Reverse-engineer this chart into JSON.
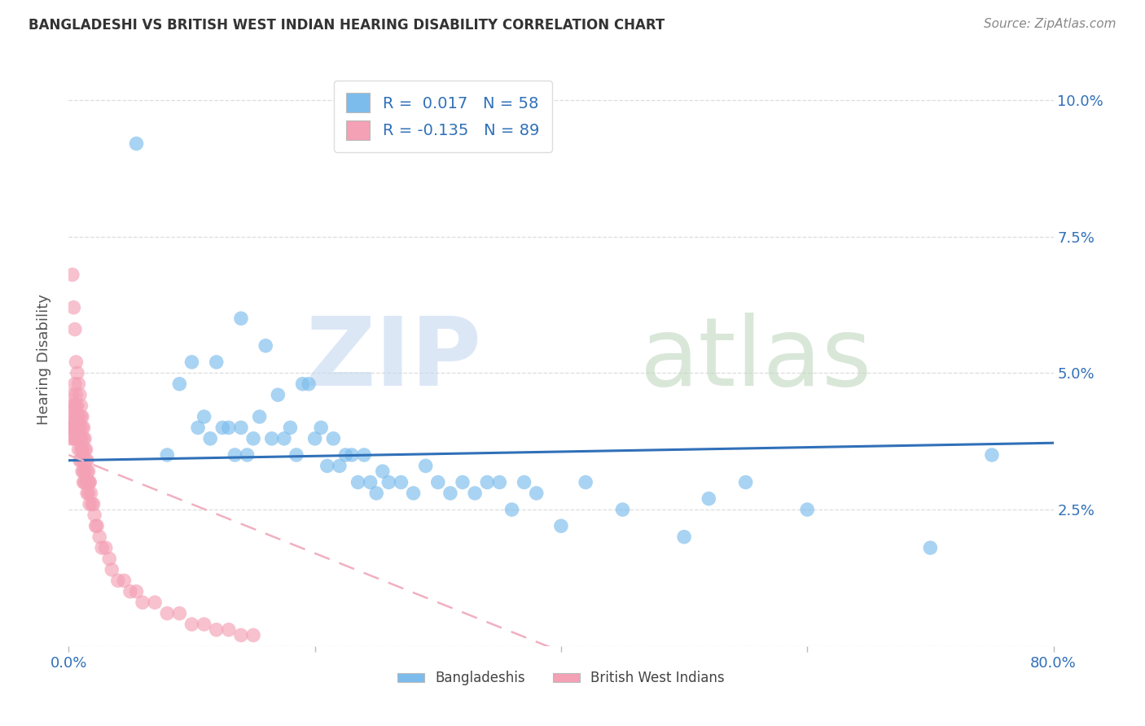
{
  "title": "BANGLADESHI VS BRITISH WEST INDIAN HEARING DISABILITY CORRELATION CHART",
  "source": "Source: ZipAtlas.com",
  "ylabel": "Hearing Disability",
  "xlim": [
    0.0,
    0.8
  ],
  "ylim": [
    0.0,
    0.105
  ],
  "blue_R": 0.017,
  "blue_N": 58,
  "pink_R": -0.135,
  "pink_N": 89,
  "blue_color": "#7BBCEC",
  "pink_color": "#F4A0B5",
  "blue_line_color": "#3070B8",
  "pink_line_color": "#F0B0C0",
  "background_color": "#FFFFFF",
  "legend_text_color": "#3070B8",
  "tick_color": "#3070B8",
  "grid_color": "#DDDDDD",
  "blue_scatter_x": [
    0.055,
    0.08,
    0.09,
    0.1,
    0.105,
    0.11,
    0.115,
    0.12,
    0.125,
    0.13,
    0.135,
    0.14,
    0.14,
    0.145,
    0.15,
    0.155,
    0.16,
    0.165,
    0.17,
    0.175,
    0.18,
    0.185,
    0.19,
    0.195,
    0.2,
    0.205,
    0.21,
    0.215,
    0.22,
    0.225,
    0.23,
    0.235,
    0.24,
    0.245,
    0.25,
    0.255,
    0.26,
    0.27,
    0.28,
    0.29,
    0.3,
    0.31,
    0.32,
    0.33,
    0.34,
    0.35,
    0.36,
    0.37,
    0.38,
    0.4,
    0.42,
    0.45,
    0.5,
    0.52,
    0.55,
    0.6,
    0.7,
    0.75
  ],
  "blue_scatter_y": [
    0.092,
    0.035,
    0.048,
    0.052,
    0.04,
    0.042,
    0.038,
    0.052,
    0.04,
    0.04,
    0.035,
    0.06,
    0.04,
    0.035,
    0.038,
    0.042,
    0.055,
    0.038,
    0.046,
    0.038,
    0.04,
    0.035,
    0.048,
    0.048,
    0.038,
    0.04,
    0.033,
    0.038,
    0.033,
    0.035,
    0.035,
    0.03,
    0.035,
    0.03,
    0.028,
    0.032,
    0.03,
    0.03,
    0.028,
    0.033,
    0.03,
    0.028,
    0.03,
    0.028,
    0.03,
    0.03,
    0.025,
    0.03,
    0.028,
    0.022,
    0.03,
    0.025,
    0.02,
    0.027,
    0.03,
    0.025,
    0.018,
    0.035
  ],
  "pink_scatter_x": [
    0.001,
    0.002,
    0.002,
    0.003,
    0.003,
    0.003,
    0.004,
    0.004,
    0.004,
    0.005,
    0.005,
    0.005,
    0.006,
    0.006,
    0.006,
    0.006,
    0.007,
    0.007,
    0.007,
    0.007,
    0.008,
    0.008,
    0.008,
    0.009,
    0.009,
    0.009,
    0.01,
    0.01,
    0.01,
    0.01,
    0.011,
    0.011,
    0.011,
    0.012,
    0.012,
    0.012,
    0.012,
    0.013,
    0.013,
    0.013,
    0.014,
    0.014,
    0.015,
    0.015,
    0.015,
    0.016,
    0.016,
    0.017,
    0.017,
    0.018,
    0.019,
    0.02,
    0.021,
    0.022,
    0.023,
    0.025,
    0.027,
    0.03,
    0.033,
    0.035,
    0.04,
    0.045,
    0.05,
    0.055,
    0.06,
    0.07,
    0.08,
    0.09,
    0.1,
    0.11,
    0.12,
    0.13,
    0.14,
    0.15,
    0.003,
    0.004,
    0.005,
    0.006,
    0.007,
    0.008,
    0.009,
    0.01,
    0.011,
    0.012,
    0.013,
    0.014,
    0.015,
    0.016,
    0.017
  ],
  "pink_scatter_y": [
    0.04,
    0.038,
    0.042,
    0.044,
    0.04,
    0.046,
    0.038,
    0.042,
    0.04,
    0.048,
    0.044,
    0.04,
    0.046,
    0.042,
    0.038,
    0.044,
    0.042,
    0.038,
    0.044,
    0.04,
    0.042,
    0.038,
    0.036,
    0.04,
    0.038,
    0.034,
    0.042,
    0.038,
    0.036,
    0.034,
    0.04,
    0.036,
    0.032,
    0.038,
    0.034,
    0.032,
    0.03,
    0.036,
    0.032,
    0.03,
    0.034,
    0.03,
    0.032,
    0.03,
    0.028,
    0.03,
    0.028,
    0.03,
    0.026,
    0.028,
    0.026,
    0.026,
    0.024,
    0.022,
    0.022,
    0.02,
    0.018,
    0.018,
    0.016,
    0.014,
    0.012,
    0.012,
    0.01,
    0.01,
    0.008,
    0.008,
    0.006,
    0.006,
    0.004,
    0.004,
    0.003,
    0.003,
    0.002,
    0.002,
    0.068,
    0.062,
    0.058,
    0.052,
    0.05,
    0.048,
    0.046,
    0.044,
    0.042,
    0.04,
    0.038,
    0.036,
    0.034,
    0.032,
    0.03
  ]
}
